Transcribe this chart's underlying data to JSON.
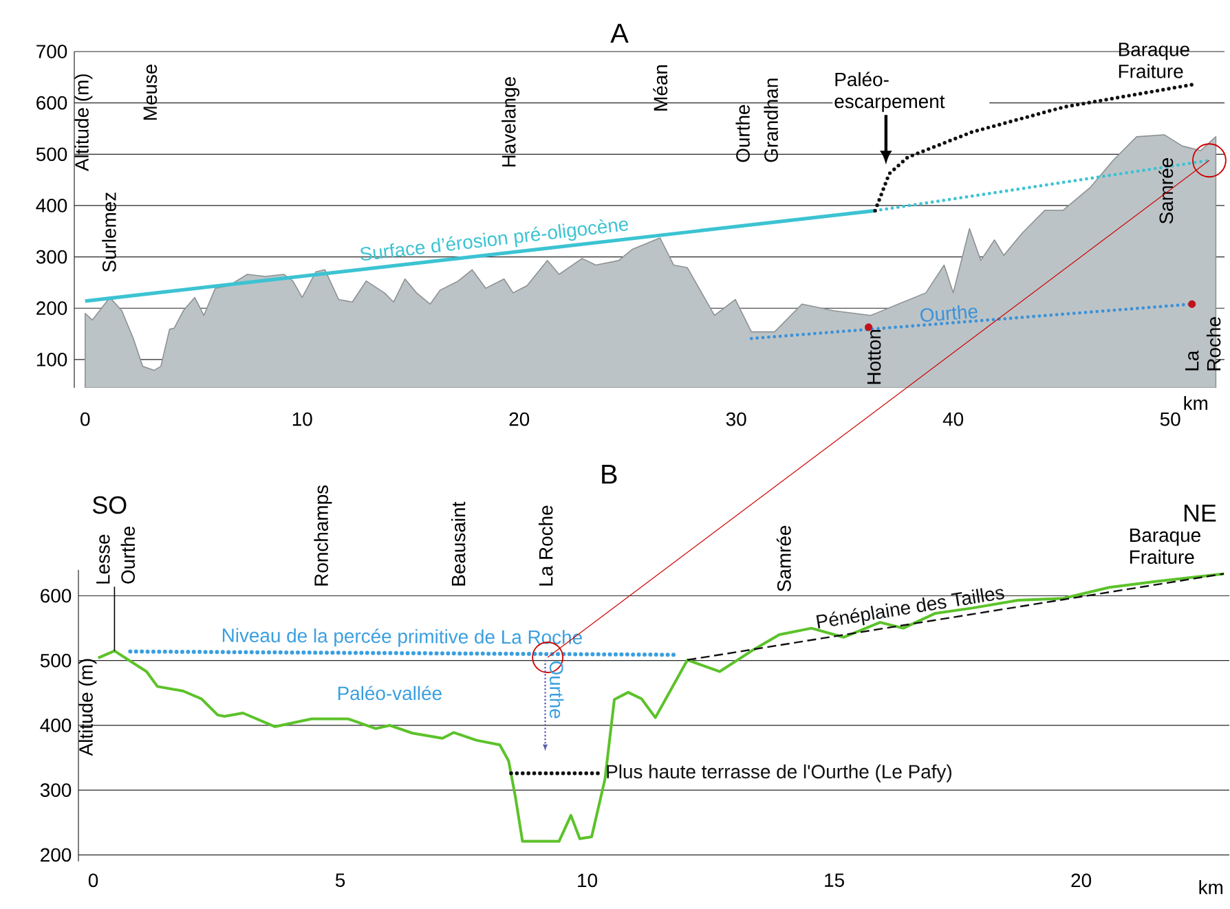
{
  "chart_data": [
    {
      "type": "area",
      "title": "A",
      "xlabel": "km",
      "ylabel": "Altitude (m)",
      "xlim": [
        -0.5,
        52.5
      ],
      "ylim": [
        45,
        700
      ],
      "xticks": [
        0,
        10,
        20,
        30,
        40,
        50
      ],
      "yticks": [
        100,
        200,
        300,
        400,
        500,
        600,
        700
      ],
      "grid": "y",
      "series": [
        {
          "color": "#bcc3c6",
          "x": [
            0,
            0.33,
            1.14,
            1.69,
            2.22,
            2.65,
            3.18,
            3.49,
            3.89,
            4.1,
            4.52,
            5.05,
            5.47,
            6.0,
            6.63,
            7.47,
            8.3,
            9.15,
            9.57,
            10.0,
            10.63,
            11.05,
            11.68,
            12.31,
            12.95,
            13.79,
            14.21,
            14.74,
            15.27,
            15.9,
            16.35,
            17.19,
            17.83,
            18.46,
            19.3,
            19.72,
            20.36,
            21.3,
            21.84,
            22.9,
            23.53,
            24.58,
            25.22,
            26.49,
            27.12,
            27.75,
            29.0,
            29.96,
            30.7,
            31.77,
            33.03,
            34.51,
            36.2,
            37.47,
            38.74,
            39.58,
            40.0,
            40.75,
            41.27,
            41.9,
            42.33,
            43.17,
            44.23,
            45.07,
            46.33,
            47.39,
            48.45,
            49.72,
            50.56,
            51.4,
            52.1
          ],
          "values": [
            190,
            177,
            221,
            195,
            141,
            87,
            79,
            87,
            159,
            161,
            195,
            221,
            186,
            239,
            244,
            266,
            262,
            266,
            253,
            221,
            271,
            275,
            217,
            212,
            253,
            230,
            212,
            257,
            230,
            208,
            235,
            253,
            275,
            239,
            257,
            230,
            244,
            293,
            266,
            297,
            284,
            293,
            315,
            337,
            284,
            279,
            186,
            217,
            154,
            154,
            208,
            195,
            186,
            208,
            230,
            284,
            230,
            355,
            293,
            333,
            303,
            346,
            391,
            391,
            436,
            489,
            534,
            538,
            516,
            507,
            534
          ]
        },
        {
          "type": "line",
          "name": "Surface d’érosion pré-oligocène",
          "color": "#3cc3d2",
          "x": [
            0,
            36.4
          ],
          "values": [
            214,
            390
          ]
        },
        {
          "type": "line",
          "color": "#3cc3d2",
          "line_style": "dotted",
          "x": [
            36.4,
            51.8
          ],
          "values": [
            390,
            488
          ]
        },
        {
          "type": "line",
          "color": "#111111",
          "line_style": "dotted",
          "x": [
            36.4,
            37.05,
            37.9,
            40.85,
            45.1,
            51.2
          ],
          "values": [
            390,
            462,
            494,
            543,
            592,
            637
          ]
        },
        {
          "type": "line",
          "name": "Ourthe",
          "color": "#3a92d9",
          "line_style": "dotted",
          "x": [
            30.7,
            51.0
          ],
          "values": [
            141,
            208
          ]
        },
        {
          "type": "scatter",
          "color": "#c0141c",
          "marker": "circle",
          "x": [
            36.1,
            51.0
          ],
          "values": [
            163,
            208
          ]
        }
      ],
      "annotations": [
        "Surlemez",
        "Meuse",
        "Havelange",
        "Méan",
        "Ourthe",
        "Grandhan",
        "Samrée",
        {
          "text": "Hotton",
          "x": 36.1,
          "y": 163
        },
        {
          "text": "La Roche",
          "x": 51.0,
          "y": 208
        },
        "Paléo-escarpement",
        {
          "text": "Baraque Fraiture",
          "x": 51.2,
          "y": 637
        }
      ]
    },
    {
      "type": "line",
      "title": "B",
      "xlabel": "km",
      "ylabel": "Altitude (m)",
      "xlim": [
        -0.3,
        23
      ],
      "ylim": [
        190,
        640
      ],
      "xticks": [
        0,
        5,
        10,
        15,
        20
      ],
      "yticks": [
        200,
        300,
        400,
        500,
        600
      ],
      "grid": "y",
      "series": [
        {
          "color": "#5cc22a",
          "x": [
            0.1,
            0.43,
            1.08,
            1.3,
            1.82,
            2.19,
            2.52,
            2.66,
            3.03,
            3.68,
            4.42,
            5.16,
            5.72,
            6.0,
            6.46,
            7.07,
            7.3,
            7.76,
            8.23,
            8.41,
            8.55,
            8.69,
            9.43,
            9.67,
            9.85,
            10.09,
            10.36,
            10.55,
            10.83,
            11.1,
            11.38,
            12.03,
            12.68,
            13.33,
            13.89,
            14.54,
            15.19,
            15.93,
            16.4,
            17.05,
            17.79,
            18.72,
            19.64,
            20.57,
            21.5,
            22.89
          ],
          "values": [
            504,
            515,
            483,
            460,
            453,
            441,
            416,
            414,
            419,
            398,
            410,
            410,
            395,
            400,
            388,
            380,
            389,
            377,
            370,
            345,
            288,
            221,
            221,
            261,
            225,
            228,
            317,
            440,
            451,
            441,
            412,
            501,
            483,
            515,
            540,
            550,
            536,
            559,
            550,
            573,
            581,
            593,
            596,
            613,
            622,
            634
          ]
        },
        {
          "name": "Pénéplaine des Tailles",
          "color": "#111111",
          "line_style": "dashed",
          "x": [
            12.03,
            22.89
          ],
          "values": [
            501,
            634
          ]
        },
        {
          "name": "Niveau de la percée primitive de La Roche",
          "color": "#3a9fe0",
          "line_style": "dotted",
          "x": [
            0.75,
            11.75
          ],
          "values": [
            514,
            509
          ]
        },
        {
          "name": "Plus haute terrasse de l'Ourthe (Le Pafy)",
          "color": "#111111",
          "line_style": "dotted",
          "x": [
            8.46,
            10.22
          ],
          "values": [
            326,
            326
          ]
        },
        {
          "type": "scatter",
          "color": "#cc0000",
          "marker": "circle",
          "x": [
            9.2
          ],
          "values": [
            505
          ]
        }
      ],
      "annotations": [
        "SO",
        {
          "text": "Lesse",
          "x": 0.43,
          "y": 515
        },
        "Ourthe",
        "Ronchamps",
        "Beausaint",
        "La Roche",
        "Samrée",
        "NE",
        {
          "text": "Baraque Fraiture",
          "x": 22.89,
          "y": 634
        },
        "Paléo-vallée",
        "Ourthe"
      ]
    }
  ]
}
